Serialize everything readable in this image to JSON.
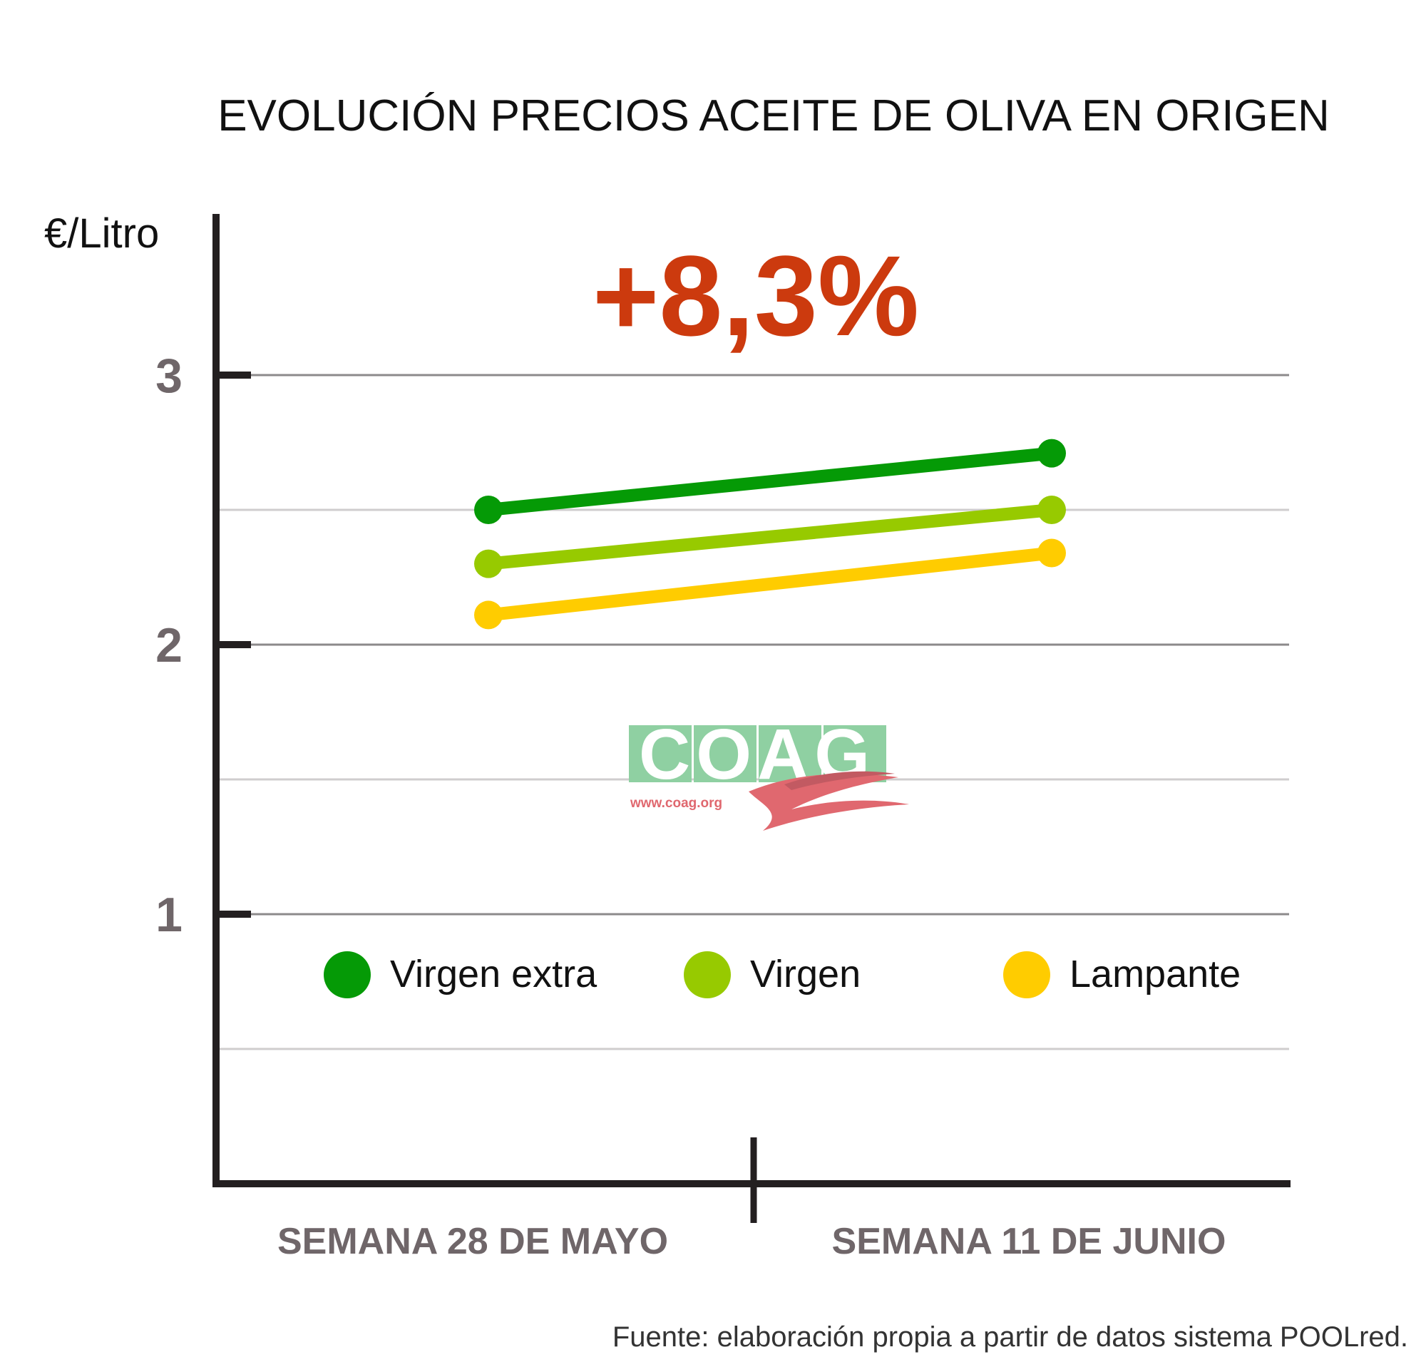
{
  "chart_data": {
    "type": "line",
    "title": "EVOLUCIÓN PRECIOS ACEITE DE OLIVA EN ORIGEN",
    "ylabel": "€/Litro",
    "ylim": [
      0,
      3.5
    ],
    "yticks": [
      1,
      2,
      3
    ],
    "ytick_labels": [
      "1",
      "2",
      "3"
    ],
    "minor_gridlines": [
      0.5,
      1.5,
      2.5
    ],
    "categories": [
      "SEMANA 28 DE MAYO",
      "SEMANA 11 DE JUNIO"
    ],
    "series": [
      {
        "name": "Virgen extra",
        "color": "#059a06",
        "values": [
          2.5,
          2.71
        ]
      },
      {
        "name": "Virgen",
        "color": "#97ca00",
        "values": [
          2.3,
          2.5
        ]
      },
      {
        "name": "Lampante",
        "color": "#ffcc00",
        "values": [
          2.11,
          2.34
        ]
      }
    ],
    "annotation": "+8,3%",
    "annotation_color": "#cc3a0e",
    "legend_position": "bottom inside plot",
    "source": "Fuente: elaboración propia a partir de datos sistema POOLred."
  },
  "watermark": {
    "logo_text": "COAG",
    "url": "www.coag.org",
    "logo_color": "#8fd0a2",
    "accent_color": "#e0686f"
  }
}
